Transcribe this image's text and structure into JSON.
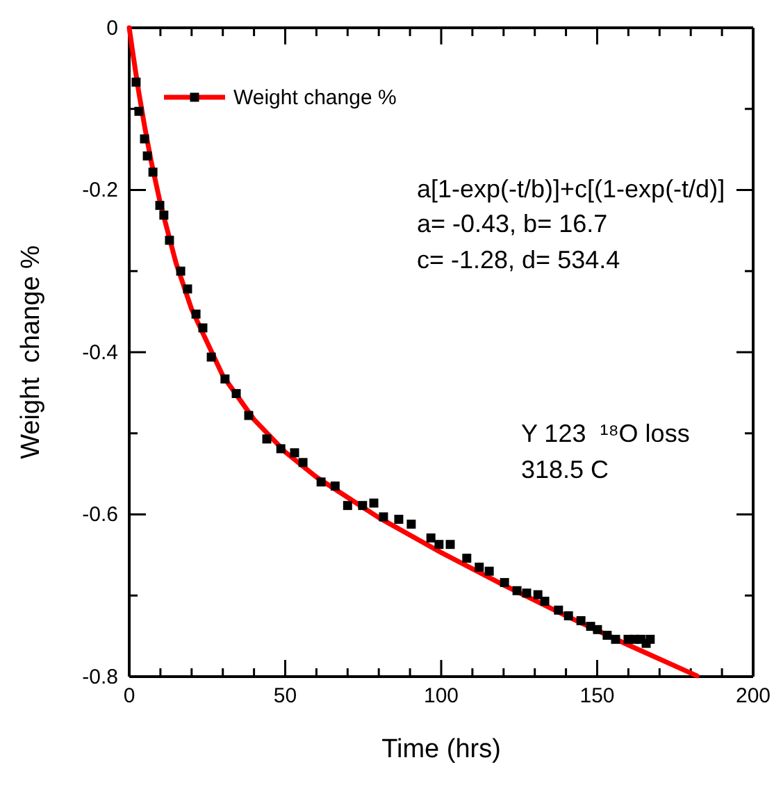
{
  "chart_data": {
    "type": "scatter",
    "xlabel": "Time (hrs)",
    "ylabel": "Weight  change %",
    "xlim": [
      0,
      200
    ],
    "ylim": [
      -0.8,
      0
    ],
    "xticks": [
      0,
      {
        "value": 10,
        "label": null
      },
      {
        "value": 20,
        "label": null
      },
      {
        "value": 30,
        "label": null
      },
      {
        "value": 40,
        "label": null
      },
      50,
      {
        "value": 60,
        "label": null
      },
      {
        "value": 70,
        "label": null
      },
      {
        "value": 80,
        "label": null
      },
      {
        "value": 90,
        "label": null
      },
      100,
      {
        "value": 110,
        "label": null
      },
      {
        "value": 120,
        "label": null
      },
      {
        "value": 130,
        "label": null
      },
      {
        "value": 140,
        "label": null
      },
      150,
      {
        "value": 160,
        "label": null
      },
      {
        "value": 170,
        "label": null
      },
      {
        "value": 180,
        "label": null
      },
      {
        "value": 190,
        "label": null
      },
      200
    ],
    "yticks": [
      -0.8,
      {
        "value": -0.7,
        "label": null
      },
      -0.6,
      {
        "value": -0.5,
        "label": null
      },
      -0.4,
      {
        "value": -0.3,
        "label": null
      },
      -0.2,
      {
        "value": -0.1,
        "label": null
      },
      0
    ],
    "legend": "top left",
    "marker": "square",
    "grid": false,
    "series": [
      {
        "name": "Weight change %",
        "color": "#000000",
        "x": [
          2.2,
          3.1,
          4.9,
          5.8,
          7.6,
          9.8,
          11.1,
          12.9,
          16.5,
          18.7,
          21.4,
          23.6,
          26.3,
          30.7,
          34.3,
          38.3,
          44.1,
          48.6,
          53,
          55.7,
          61.5,
          66,
          70,
          74.8,
          78.4,
          81.5,
          86.4,
          90.4,
          96.7,
          99.3,
          102.9,
          108.2,
          112.2,
          115.4,
          120.3,
          124.3,
          127.4,
          131,
          133.2,
          137.6,
          140.8,
          144.8,
          147.9,
          150.1,
          153.2,
          155.9,
          159.9,
          162,
          164,
          167,
          165.7
        ],
        "values": [
          -0.067,
          -0.103,
          -0.137,
          -0.158,
          -0.178,
          -0.219,
          -0.231,
          -0.262,
          -0.3,
          -0.322,
          -0.353,
          -0.37,
          -0.406,
          -0.433,
          -0.451,
          -0.478,
          -0.507,
          -0.519,
          -0.524,
          -0.536,
          -0.56,
          -0.565,
          -0.589,
          -0.589,
          -0.586,
          -0.603,
          -0.606,
          -0.612,
          -0.629,
          -0.637,
          -0.637,
          -0.654,
          -0.665,
          -0.67,
          -0.684,
          -0.694,
          -0.697,
          -0.699,
          -0.707,
          -0.718,
          -0.725,
          -0.731,
          -0.738,
          -0.742,
          -0.749,
          -0.754,
          -0.754,
          -0.754,
          -0.754,
          -0.754,
          -0.759
        ]
      },
      {
        "type": "line",
        "color": "#ff0000",
        "marker": "none",
        "x": [
          0,
          1,
          2,
          3,
          5,
          7,
          10,
          15,
          20,
          30,
          40,
          50,
          60,
          80,
          100,
          120,
          140,
          160,
          182
        ],
        "values": [
          0,
          -0.027,
          -0.053,
          -0.078,
          -0.123,
          -0.164,
          -0.217,
          -0.29,
          -0.347,
          -0.429,
          -0.483,
          -0.523,
          -0.554,
          -0.604,
          -0.647,
          -0.687,
          -0.725,
          -0.761,
          -0.799
        ]
      }
    ],
    "annotations": [
      "a[1-exp(-t/b)]+c[(1-exp(-t/d)]",
      "a= -0.43, b= 16.7",
      "c= -1.28, d= 534.4",
      "Y 123  ¹⁸O loss",
      "318.5 C"
    ]
  }
}
